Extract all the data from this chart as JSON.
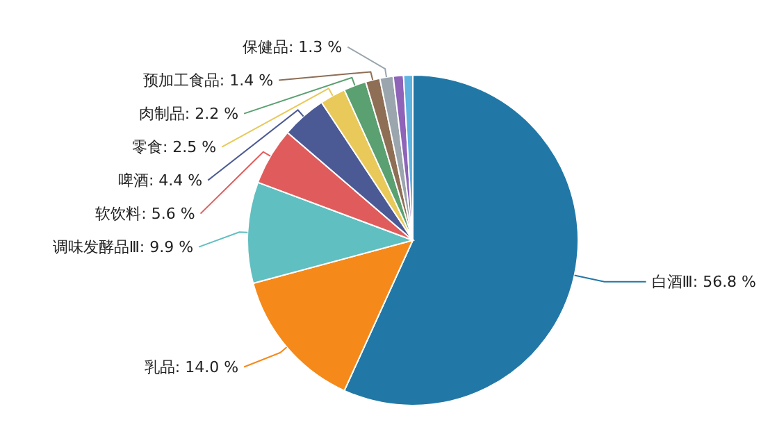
{
  "chart_data": {
    "type": "pie",
    "categories": [
      "白酒Ⅲ",
      "乳品",
      "调味发酵品Ⅲ",
      "软饮料",
      "啤酒",
      "零食",
      "肉制品",
      "预加工食品",
      "保健品",
      null,
      null
    ],
    "values": [
      56.8,
      14.0,
      9.9,
      5.6,
      4.4,
      2.5,
      2.2,
      1.4,
      1.3,
      1.0,
      0.9
    ],
    "value_labels": [
      "56.8 %",
      "14.0 %",
      "9.9 %",
      "5.6 %",
      "4.4 %",
      "2.5 %",
      "2.2 %",
      "1.4 %",
      "1.3 %",
      null,
      null
    ],
    "colors": [
      "#2178a6",
      "#f5891a",
      "#60bfc0",
      "#e05c5c",
      "#4b5a94",
      "#e8c95a",
      "#5aa070",
      "#8e6e55",
      "#9aa5ae",
      "#8e63b8",
      "#5fb3e0"
    ],
    "legend": false
  }
}
